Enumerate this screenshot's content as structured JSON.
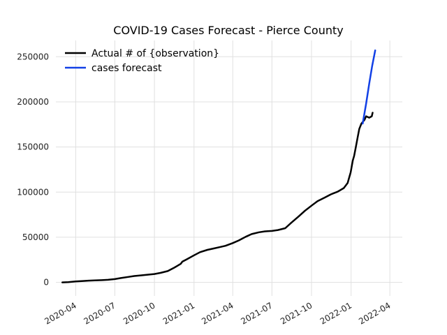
{
  "chart_data": {
    "type": "line",
    "title": "COVID-19 Cases Forecast - Pierce County",
    "xlabel": "",
    "ylabel": "",
    "x_axis_type": "date",
    "xlim": [
      "2020-02-15",
      "2022-04-30"
    ],
    "ylim": [
      -15000,
      268000
    ],
    "y_ticks": [
      0,
      50000,
      100000,
      150000,
      200000,
      250000
    ],
    "y_tick_labels": [
      "0",
      "50000",
      "100000",
      "150000",
      "200000",
      "250000"
    ],
    "x_ticks": [
      "2020-04-01",
      "2020-07-01",
      "2020-10-01",
      "2021-01-01",
      "2021-04-01",
      "2021-07-01",
      "2021-10-01",
      "2022-01-01",
      "2022-04-01"
    ],
    "x_tick_labels": [
      "2020-04",
      "2020-07",
      "2020-10",
      "2021-01",
      "2021-04",
      "2021-07",
      "2021-10",
      "2022-01",
      "2022-04"
    ],
    "grid": true,
    "legend_position": "top-left",
    "series": [
      {
        "name": "Actual # of {observation}",
        "color": "#000000",
        "points": [
          [
            "2020-03-01",
            0
          ],
          [
            "2020-03-15",
            300
          ],
          [
            "2020-04-01",
            1000
          ],
          [
            "2020-04-15",
            1500
          ],
          [
            "2020-05-01",
            1900
          ],
          [
            "2020-05-15",
            2200
          ],
          [
            "2020-06-01",
            2500
          ],
          [
            "2020-06-15",
            2900
          ],
          [
            "2020-07-01",
            3600
          ],
          [
            "2020-07-15",
            4800
          ],
          [
            "2020-08-01",
            6000
          ],
          [
            "2020-08-15",
            7000
          ],
          [
            "2020-09-01",
            7800
          ],
          [
            "2020-09-15",
            8500
          ],
          [
            "2020-10-01",
            9300
          ],
          [
            "2020-10-15",
            10500
          ],
          [
            "2020-11-01",
            12500
          ],
          [
            "2020-11-15",
            16000
          ],
          [
            "2020-12-01",
            20500
          ],
          [
            "2020-12-05",
            23000
          ],
          [
            "2020-12-15",
            25500
          ],
          [
            "2021-01-01",
            30000
          ],
          [
            "2021-01-15",
            33500
          ],
          [
            "2021-02-01",
            36000
          ],
          [
            "2021-02-15",
            37500
          ],
          [
            "2021-03-01",
            39000
          ],
          [
            "2021-03-15",
            40500
          ],
          [
            "2021-04-01",
            43500
          ],
          [
            "2021-04-15",
            46500
          ],
          [
            "2021-05-01",
            50500
          ],
          [
            "2021-05-15",
            53500
          ],
          [
            "2021-06-01",
            55500
          ],
          [
            "2021-06-15",
            56500
          ],
          [
            "2021-07-01",
            57000
          ],
          [
            "2021-07-15",
            58000
          ],
          [
            "2021-08-01",
            60000
          ],
          [
            "2021-08-15",
            66000
          ],
          [
            "2021-09-01",
            73000
          ],
          [
            "2021-09-15",
            79000
          ],
          [
            "2021-10-01",
            85000
          ],
          [
            "2021-10-15",
            90000
          ],
          [
            "2021-11-01",
            94000
          ],
          [
            "2021-11-15",
            97500
          ],
          [
            "2021-12-01",
            100500
          ],
          [
            "2021-12-15",
            104500
          ],
          [
            "2021-12-24",
            110000
          ],
          [
            "2021-12-31",
            122000
          ],
          [
            "2022-01-05",
            135000
          ],
          [
            "2022-01-08",
            140000
          ],
          [
            "2022-01-12",
            150000
          ],
          [
            "2022-01-16",
            160000
          ],
          [
            "2022-01-20",
            170000
          ],
          [
            "2022-01-25",
            176000
          ],
          [
            "2022-02-01",
            180000
          ],
          [
            "2022-02-05",
            184000
          ],
          [
            "2022-02-12",
            182500
          ],
          [
            "2022-02-18",
            184000
          ],
          [
            "2022-02-20",
            188000
          ]
        ]
      },
      {
        "name": "cases forecast",
        "color": "#1240e6",
        "points": [
          [
            "2022-01-28",
            176000
          ],
          [
            "2022-02-05",
            198000
          ],
          [
            "2022-02-12",
            220000
          ],
          [
            "2022-02-19",
            240000
          ],
          [
            "2022-02-26",
            257000
          ]
        ]
      }
    ]
  }
}
